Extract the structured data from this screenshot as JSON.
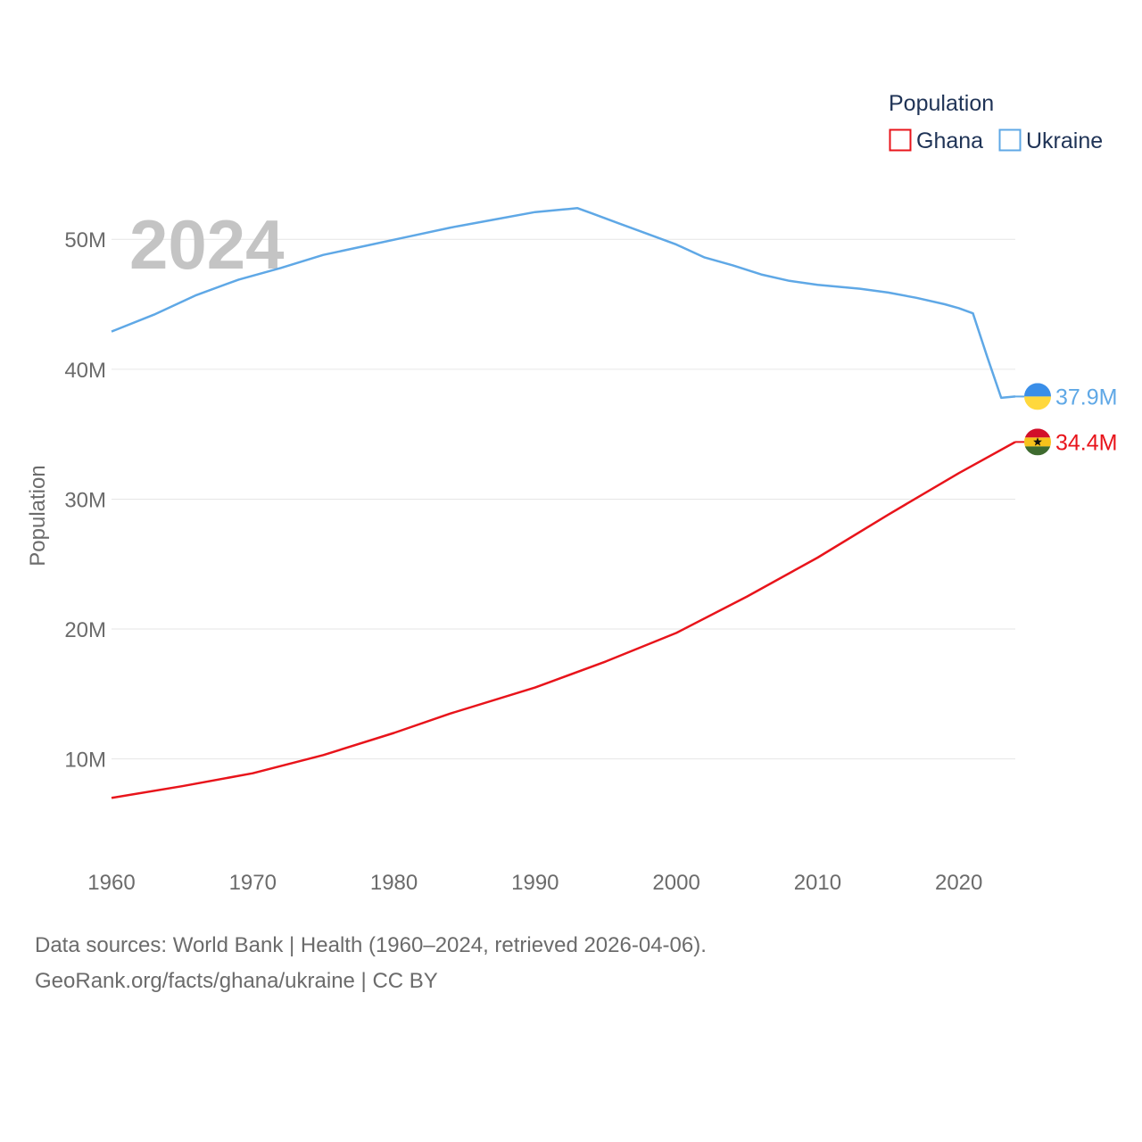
{
  "chart_data": {
    "type": "line",
    "title": "Population",
    "ylabel": "Population",
    "xlabel": "",
    "xlim": [
      1960,
      2024
    ],
    "ylim": [
      4000000,
      54000000
    ],
    "x_ticks": [
      1960,
      1970,
      1980,
      1990,
      2000,
      2010,
      2020
    ],
    "y_ticks": [
      {
        "value": 10000000,
        "label": "10M"
      },
      {
        "value": 20000000,
        "label": "20M"
      },
      {
        "value": 30000000,
        "label": "30M"
      },
      {
        "value": 40000000,
        "label": "40M"
      },
      {
        "value": 50000000,
        "label": "50M"
      }
    ],
    "grid": true,
    "year_label": "2024",
    "legend_position": "top-right",
    "series": [
      {
        "name": "Ghana",
        "color": "#e8141b",
        "end_label": "34.4M",
        "flag": "ghana-flag",
        "points": [
          [
            1960,
            7000000
          ],
          [
            1965,
            7900000
          ],
          [
            1970,
            8900000
          ],
          [
            1975,
            10300000
          ],
          [
            1980,
            12000000
          ],
          [
            1984,
            13500000
          ],
          [
            1990,
            15500000
          ],
          [
            1995,
            17500000
          ],
          [
            2000,
            19700000
          ],
          [
            2005,
            22500000
          ],
          [
            2010,
            25500000
          ],
          [
            2015,
            28800000
          ],
          [
            2020,
            32000000
          ],
          [
            2024,
            34400000
          ]
        ]
      },
      {
        "name": "Ukraine",
        "color": "#5fa8e6",
        "end_label": "37.9M",
        "flag": "ukraine-flag",
        "points": [
          [
            1960,
            42900000
          ],
          [
            1963,
            44200000
          ],
          [
            1966,
            45700000
          ],
          [
            1969,
            46900000
          ],
          [
            1972,
            47800000
          ],
          [
            1975,
            48800000
          ],
          [
            1978,
            49500000
          ],
          [
            1981,
            50200000
          ],
          [
            1984,
            50900000
          ],
          [
            1987,
            51500000
          ],
          [
            1990,
            52100000
          ],
          [
            1992,
            52300000
          ],
          [
            1993,
            52400000
          ],
          [
            1994,
            52000000
          ],
          [
            1996,
            51200000
          ],
          [
            1998,
            50400000
          ],
          [
            2000,
            49600000
          ],
          [
            2002,
            48600000
          ],
          [
            2004,
            48000000
          ],
          [
            2006,
            47300000
          ],
          [
            2008,
            46800000
          ],
          [
            2010,
            46500000
          ],
          [
            2013,
            46200000
          ],
          [
            2015,
            45900000
          ],
          [
            2017,
            45500000
          ],
          [
            2019,
            45000000
          ],
          [
            2020,
            44700000
          ],
          [
            2021,
            44300000
          ],
          [
            2022,
            41000000
          ],
          [
            2023,
            37800000
          ],
          [
            2024,
            37900000
          ]
        ]
      }
    ]
  },
  "footer": {
    "line1": "Data sources: World Bank | Health (1960–2024, retrieved 2026-04-06).",
    "line2": "GeoRank.org/facts/ghana/ukraine | CC BY"
  }
}
